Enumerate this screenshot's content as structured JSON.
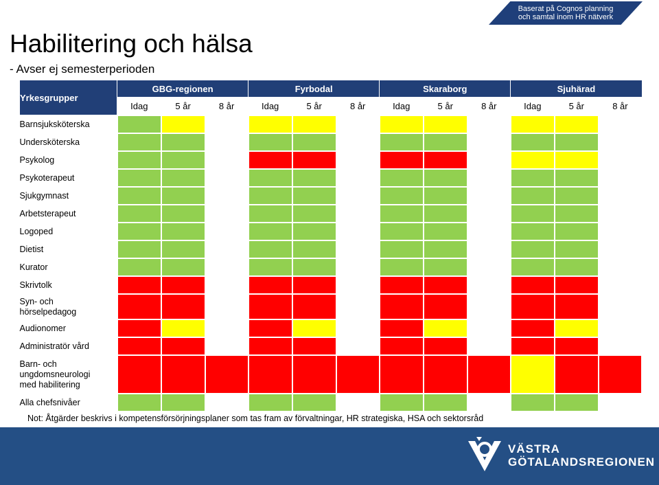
{
  "header": {
    "tag_line1": "Baserat på Cognos planning",
    "tag_line2": "och samtal inom HR nätverk",
    "title": "Habilitering och hälsa",
    "subtitle": "- Avser ej semesterperioden"
  },
  "table": {
    "corner_label": "Yrkesgrupper",
    "regions": [
      "GBG-regionen",
      "Fyrbodal",
      "Skaraborg",
      "Sjuhärad"
    ],
    "periods": [
      "Idag",
      "5 år",
      "8 år"
    ],
    "colors": {
      "G": "#92d050",
      "Y": "#ffff00",
      "R": "#ff0000",
      "W": "#ffffff"
    },
    "rows": [
      {
        "label": "Barnsjuksköterska",
        "status": [
          "G",
          "Y",
          "W",
          "Y",
          "Y",
          "W",
          "Y",
          "Y",
          "W",
          "Y",
          "Y",
          "W"
        ]
      },
      {
        "label": "Undersköterska",
        "status": [
          "G",
          "G",
          "W",
          "G",
          "G",
          "W",
          "G",
          "G",
          "W",
          "G",
          "G",
          "W"
        ]
      },
      {
        "label": "Psykolog",
        "status": [
          "G",
          "G",
          "W",
          "R",
          "R",
          "W",
          "R",
          "R",
          "W",
          "Y",
          "Y",
          "W"
        ]
      },
      {
        "label": "Psykoterapeut",
        "status": [
          "G",
          "G",
          "W",
          "G",
          "G",
          "W",
          "G",
          "G",
          "W",
          "G",
          "G",
          "W"
        ]
      },
      {
        "label": "Sjukgymnast",
        "status": [
          "G",
          "G",
          "W",
          "G",
          "G",
          "W",
          "G",
          "G",
          "W",
          "G",
          "G",
          "W"
        ]
      },
      {
        "label": "Arbetsterapeut",
        "status": [
          "G",
          "G",
          "W",
          "G",
          "G",
          "W",
          "G",
          "G",
          "W",
          "G",
          "G",
          "W"
        ]
      },
      {
        "label": "Logoped",
        "status": [
          "G",
          "G",
          "W",
          "G",
          "G",
          "W",
          "G",
          "G",
          "W",
          "G",
          "G",
          "W"
        ]
      },
      {
        "label": "Dietist",
        "status": [
          "G",
          "G",
          "W",
          "G",
          "G",
          "W",
          "G",
          "G",
          "W",
          "G",
          "G",
          "W"
        ]
      },
      {
        "label": "Kurator",
        "status": [
          "G",
          "G",
          "W",
          "G",
          "G",
          "W",
          "G",
          "G",
          "W",
          "G",
          "G",
          "W"
        ]
      },
      {
        "label": "Skrivtolk",
        "status": [
          "R",
          "R",
          "W",
          "R",
          "R",
          "W",
          "R",
          "R",
          "W",
          "R",
          "R",
          "W"
        ]
      },
      {
        "label": "Syn- och\nhörselpedagog",
        "status": [
          "R",
          "R",
          "W",
          "R",
          "R",
          "W",
          "R",
          "R",
          "W",
          "R",
          "R",
          "W"
        ]
      },
      {
        "label": "Audionomer",
        "status": [
          "R",
          "Y",
          "W",
          "R",
          "Y",
          "W",
          "R",
          "Y",
          "W",
          "R",
          "Y",
          "W"
        ]
      },
      {
        "label": "Administratör vård",
        "status": [
          "R",
          "R",
          "W",
          "R",
          "R",
          "W",
          "R",
          "R",
          "W",
          "R",
          "R",
          "W"
        ]
      },
      {
        "label": "Barn- och\nungdomsneurologi\nmed habilitering",
        "status": [
          "R",
          "R",
          "R",
          "R",
          "R",
          "R",
          "R",
          "R",
          "R",
          "Y",
          "R",
          "R"
        ]
      },
      {
        "label": "Alla chefsnivåer",
        "status": [
          "G",
          "G",
          "W",
          "G",
          "G",
          "W",
          "G",
          "G",
          "W",
          "G",
          "G",
          "W"
        ]
      }
    ]
  },
  "footer": {
    "note": "Not: Åtgärder beskrivs i kompetensförsörjningsplaner som tas fram av förvaltningar, HR strategiska, HSA och sektorsråd",
    "logo_line1": "VÄSTRA",
    "logo_line2": "GÖTALANDSREGIONEN"
  }
}
